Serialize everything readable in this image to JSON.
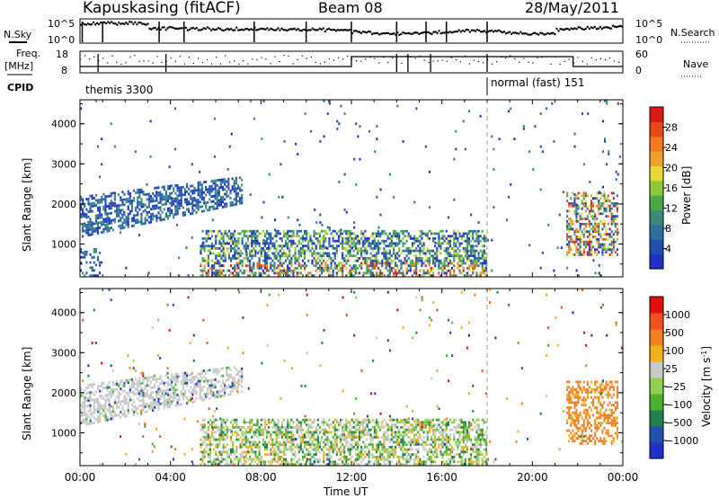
{
  "header": {
    "station": "Kapuskasing (fitACF)",
    "beam": "Beam 08",
    "date": "28/May/2011"
  },
  "left_labels": {
    "nsky": "N.Sky",
    "freq": "Freq.",
    "freq_unit": "[MHz]",
    "cpid": "CPID"
  },
  "right_labels": {
    "nsearch": "N.Search",
    "nave": "Nave"
  },
  "tick_labels": {
    "noise_top": "10^5",
    "noise_bottom": "10^0",
    "freq_top": "18",
    "freq_bottom": "8",
    "nave_top": "60",
    "nave_bottom": "0"
  },
  "cpid_modes": [
    {
      "label": "themis 3300",
      "start_hour": 0,
      "end_hour": 18
    },
    {
      "label": "normal (fast) 151",
      "start_hour": 18,
      "end_hour": 24
    }
  ],
  "chart_data": [
    {
      "type": "heatmap",
      "panel": "power",
      "ylabel": "Slant Range [km]",
      "xlabel": "",
      "xlim_hours": [
        0,
        24
      ],
      "ylim_km": [
        180,
        4600
      ],
      "y_ticks": [
        1000,
        2000,
        3000,
        4000
      ],
      "colorbar": {
        "label": "Power [dB]",
        "ticks": [
          "4",
          "8",
          "12",
          "16",
          "20",
          "24",
          "28"
        ],
        "colors": [
          "#1f2fc8",
          "#1f4fb0",
          "#2f6f9a",
          "#3a8a7a",
          "#4aa84a",
          "#8fc83a",
          "#e8d83a",
          "#f0a030",
          "#f07a20",
          "#e84a1a",
          "#d81a1a"
        ]
      },
      "regions": [
        {
          "name": "diagonal-band",
          "t0": 0.0,
          "t1": 7.2,
          "r0": 1150,
          "r1": 2200,
          "r_end0": 2000,
          "r_end1": 2700,
          "density": 0.55,
          "level": "low"
        },
        {
          "name": "near-range-clutter",
          "t0": 5.3,
          "t1": 18.0,
          "r0": 180,
          "r1": 1350,
          "density": 0.55,
          "level": "high"
        },
        {
          "name": "early-near-range",
          "t0": 0.0,
          "t1": 1.0,
          "r0": 180,
          "r1": 900,
          "density": 0.35,
          "level": "low"
        },
        {
          "name": "late-event",
          "t0": 21.5,
          "t1": 23.8,
          "r0": 700,
          "r1": 2300,
          "density": 0.5,
          "level": "mixed"
        },
        {
          "name": "sparse-scatter",
          "t0": 0.0,
          "t1": 24.0,
          "r0": 180,
          "r1": 4600,
          "density": 0.012,
          "level": "low"
        }
      ]
    },
    {
      "type": "heatmap",
      "panel": "velocity",
      "ylabel": "Slant Range [km]",
      "xlabel": "Time UT",
      "xlim_hours": [
        0,
        24
      ],
      "ylim_km": [
        180,
        4600
      ],
      "y_ticks": [
        1000,
        2000,
        3000,
        4000
      ],
      "x_ticks": [
        "00:00",
        "04:00",
        "08:00",
        "12:00",
        "16:00",
        "20:00",
        "00:00"
      ],
      "colorbar": {
        "label": "Velocity [m s^-1]",
        "ticks": [
          "1000",
          "500",
          "100",
          "25",
          "-25",
          "-100",
          "-500",
          "-1000"
        ],
        "colors": [
          "#2030c8",
          "#2050b0",
          "#208050",
          "#50b030",
          "#90d050",
          "#c8c8c8",
          "#f0b020",
          "#f08020",
          "#f05020",
          "#e01010"
        ]
      },
      "regions": [
        {
          "name": "diagonal-band",
          "t0": 0.0,
          "t1": 7.2,
          "r0": 1150,
          "r1": 2200,
          "r_end0": 2000,
          "r_end1": 2700,
          "density": 0.55,
          "level": "gray"
        },
        {
          "name": "near-range-clutter",
          "t0": 5.3,
          "t1": 18.0,
          "r0": 180,
          "r1": 1350,
          "density": 0.55,
          "level": "green-gray"
        },
        {
          "name": "late-event",
          "t0": 21.5,
          "t1": 23.8,
          "r0": 700,
          "r1": 2300,
          "density": 0.5,
          "level": "orange"
        },
        {
          "name": "sparse-scatter",
          "t0": 0.0,
          "t1": 24.0,
          "r0": 180,
          "r1": 4600,
          "density": 0.012,
          "level": "mixed"
        }
      ]
    }
  ]
}
